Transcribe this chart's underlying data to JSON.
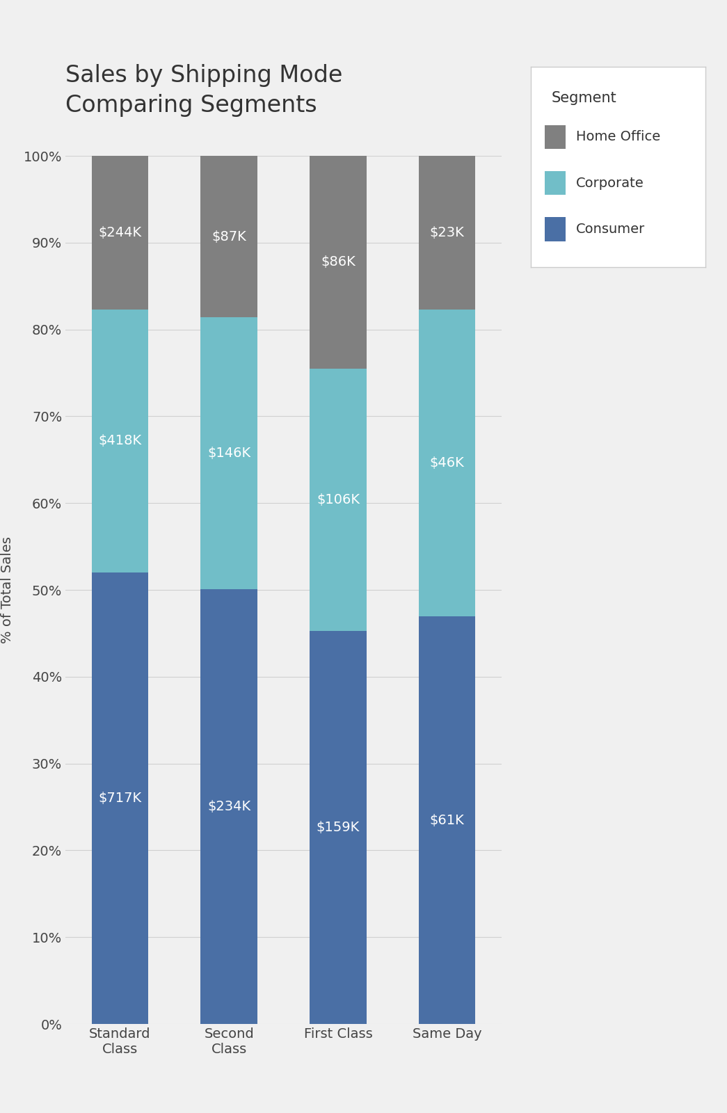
{
  "title": "Sales by Shipping Mode\nComparing Segments",
  "ylabel": "% of Total Sales",
  "categories": [
    "Standard\nClass",
    "Second\nClass",
    "First Class",
    "Same Day"
  ],
  "segments": [
    "Consumer",
    "Corporate",
    "Home Office"
  ],
  "colors": {
    "Consumer": "#4a6fa5",
    "Corporate": "#71bec8",
    "Home Office": "#808080"
  },
  "values": {
    "Standard\nClass": {
      "Consumer": 717,
      "Corporate": 418,
      "Home Office": 244
    },
    "Second\nClass": {
      "Consumer": 234,
      "Corporate": 146,
      "Home Office": 87
    },
    "First Class": {
      "Consumer": 159,
      "Corporate": 106,
      "Home Office": 86
    },
    "Same Day": {
      "Consumer": 61,
      "Corporate": 46,
      "Home Office": 23
    }
  },
  "labels": {
    "Standard\nClass": {
      "Consumer": "$717K",
      "Corporate": "$418K",
      "Home Office": "$244K"
    },
    "Second\nClass": {
      "Consumer": "$234K",
      "Corporate": "$146K",
      "Home Office": "$87K"
    },
    "First Class": {
      "Consumer": "$159K",
      "Corporate": "$106K",
      "Home Office": "$86K"
    },
    "Same Day": {
      "Consumer": "$61K",
      "Corporate": "$46K",
      "Home Office": "$23K"
    }
  },
  "background_color": "#f0f0f0",
  "plot_background_color": "#f0f0f0",
  "legend_title": "Segment",
  "legend_box_color": "#ffffff",
  "title_fontsize": 24,
  "label_fontsize": 14,
  "tick_fontsize": 14,
  "legend_fontsize": 14,
  "bar_width": 0.52
}
